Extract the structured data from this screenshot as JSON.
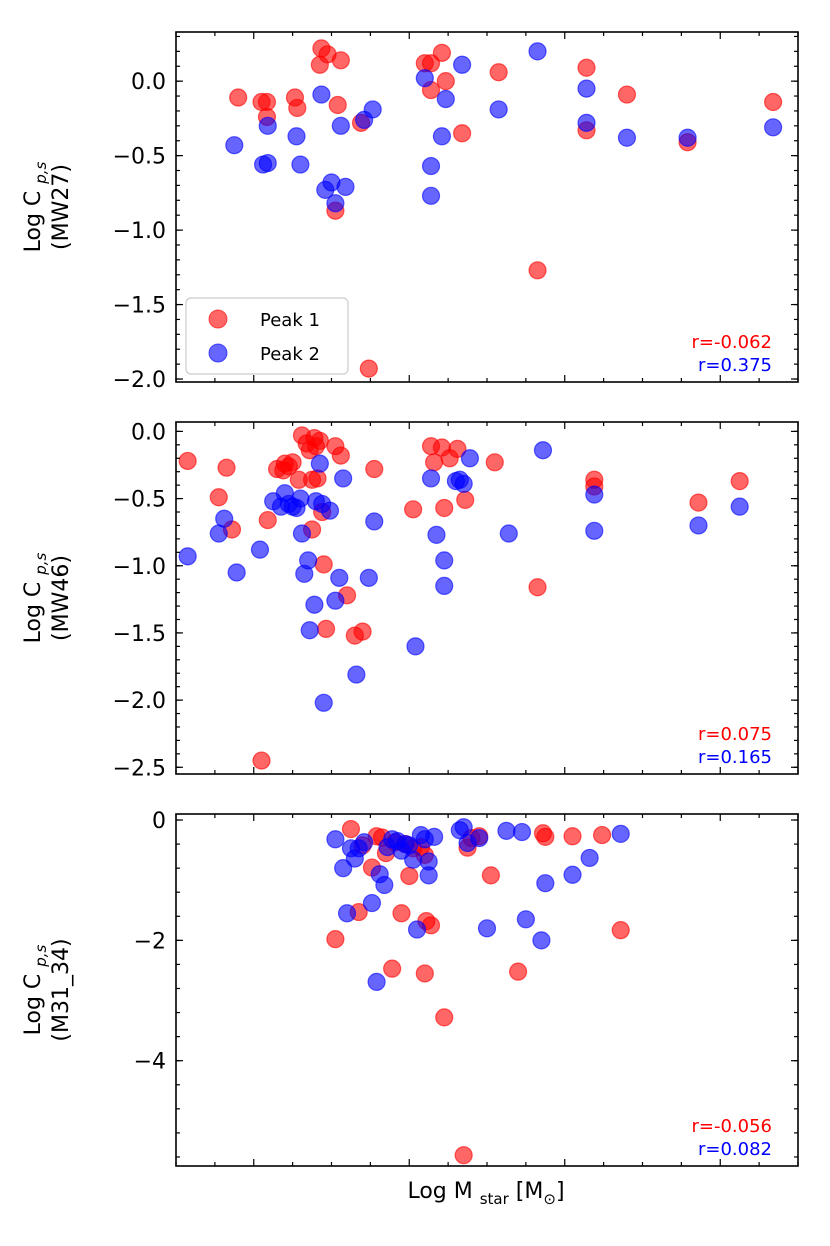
{
  "chart_data": [
    {
      "type": "scatter",
      "ylabel": "Log C",
      "ylabel_subscript": "p,s",
      "ylabel_line2": "(MW27)",
      "ylim": [
        -2.02,
        0.33
      ],
      "yticks": [
        0.0,
        -0.5,
        -1.0,
        -1.5,
        -2.0
      ],
      "ytick_labels": [
        "0.0",
        "−0.5",
        "−1.0",
        "−1.5",
        "−2.0"
      ],
      "legend": [
        {
          "name": "Peak 1",
          "color": "#ff0000"
        },
        {
          "name": "Peak 2",
          "color": "#0000ff"
        }
      ],
      "correlations": [
        {
          "text": "r=-0.062",
          "color": "#ff0000"
        },
        {
          "text": "r=0.375",
          "color": "#0000ff"
        }
      ],
      "series": [
        {
          "name": "Peak 1",
          "color": "#ff0000",
          "points": [
            [
              0.8,
              -0.11
            ],
            [
              1.1,
              -0.14
            ],
            [
              1.17,
              -0.14
            ],
            [
              1.17,
              -0.24
            ],
            [
              1.53,
              -0.11
            ],
            [
              1.56,
              -0.18
            ],
            [
              1.85,
              0.11
            ],
            [
              1.87,
              0.22
            ],
            [
              1.95,
              0.18
            ],
            [
              2.08,
              -0.16
            ],
            [
              2.12,
              0.14
            ],
            [
              2.05,
              -0.87
            ],
            [
              2.38,
              -0.28
            ],
            [
              2.48,
              -1.93
            ],
            [
              3.2,
              0.12
            ],
            [
              3.28,
              0.12
            ],
            [
              3.28,
              -0.06
            ],
            [
              3.42,
              0.19
            ],
            [
              3.47,
              0.0
            ],
            [
              3.68,
              -0.35
            ],
            [
              4.15,
              0.06
            ],
            [
              4.65,
              -1.27
            ],
            [
              5.28,
              0.09
            ],
            [
              5.28,
              -0.33
            ],
            [
              5.8,
              -0.09
            ],
            [
              6.58,
              -0.41
            ],
            [
              7.68,
              -0.14
            ]
          ]
        },
        {
          "name": "Peak 2",
          "color": "#0000ff",
          "points": [
            [
              0.75,
              -0.43
            ],
            [
              1.12,
              -0.56
            ],
            [
              1.18,
              -0.55
            ],
            [
              1.18,
              -0.3
            ],
            [
              1.55,
              -0.37
            ],
            [
              1.6,
              -0.56
            ],
            [
              1.87,
              -0.09
            ],
            [
              1.92,
              -0.73
            ],
            [
              2.0,
              -0.68
            ],
            [
              2.05,
              -0.82
            ],
            [
              2.12,
              -0.3
            ],
            [
              2.18,
              -0.71
            ],
            [
              2.42,
              -0.26
            ],
            [
              2.53,
              -0.19
            ],
            [
              3.2,
              0.02
            ],
            [
              3.28,
              -0.57
            ],
            [
              3.28,
              -0.77
            ],
            [
              3.42,
              -0.37
            ],
            [
              3.47,
              -0.12
            ],
            [
              3.68,
              0.11
            ],
            [
              4.15,
              -0.19
            ],
            [
              4.65,
              0.2
            ],
            [
              5.28,
              -0.05
            ],
            [
              5.28,
              -0.28
            ],
            [
              5.8,
              -0.38
            ],
            [
              6.58,
              -0.38
            ],
            [
              7.68,
              -0.31
            ]
          ]
        }
      ]
    },
    {
      "type": "scatter",
      "ylabel": "Log C",
      "ylabel_subscript": "p,s",
      "ylabel_line2": "(MW46)",
      "ylim": [
        -2.55,
        0.07
      ],
      "yticks": [
        0.0,
        -0.5,
        -1.0,
        -1.5,
        -2.0,
        -2.5
      ],
      "ytick_labels": [
        "0.0",
        "−0.5",
        "−1.0",
        "−1.5",
        "−2.0",
        "−2.5"
      ],
      "legend": [],
      "correlations": [
        {
          "text": "r=0.075",
          "color": "#ff0000"
        },
        {
          "text": "r=0.165",
          "color": "#0000ff"
        }
      ],
      "series": [
        {
          "name": "Peak 1",
          "color": "#ff0000",
          "points": [
            [
              0.15,
              -0.22
            ],
            [
              0.55,
              -0.49
            ],
            [
              0.65,
              -0.27
            ],
            [
              0.72,
              -0.73
            ],
            [
              1.18,
              -0.66
            ],
            [
              1.1,
              -2.45
            ],
            [
              1.3,
              -0.28
            ],
            [
              1.38,
              -0.29
            ],
            [
              1.4,
              -0.24
            ],
            [
              1.45,
              -0.26
            ],
            [
              1.5,
              -0.23
            ],
            [
              1.58,
              -0.36
            ],
            [
              1.62,
              -0.03
            ],
            [
              1.68,
              -0.09
            ],
            [
              1.72,
              -0.14
            ],
            [
              1.75,
              -0.36
            ],
            [
              1.78,
              -0.05
            ],
            [
              1.8,
              -0.11
            ],
            [
              1.82,
              -0.35
            ],
            [
              1.85,
              -0.07
            ],
            [
              1.88,
              -0.6
            ],
            [
              1.9,
              -0.99
            ],
            [
              1.93,
              -1.47
            ],
            [
              1.75,
              -0.73
            ],
            [
              2.05,
              -0.11
            ],
            [
              2.12,
              -0.18
            ],
            [
              2.2,
              -1.22
            ],
            [
              2.3,
              -1.52
            ],
            [
              2.4,
              -1.49
            ],
            [
              2.55,
              -0.28
            ],
            [
              3.05,
              -0.58
            ],
            [
              3.28,
              -0.11
            ],
            [
              3.32,
              -0.23
            ],
            [
              3.42,
              -0.12
            ],
            [
              3.45,
              -0.57
            ],
            [
              3.52,
              -0.2
            ],
            [
              3.62,
              -0.13
            ],
            [
              3.72,
              -0.51
            ],
            [
              4.1,
              -0.23
            ],
            [
              4.65,
              -1.16
            ],
            [
              5.38,
              -0.36
            ],
            [
              5.38,
              -0.41
            ],
            [
              6.72,
              -0.53
            ],
            [
              7.25,
              -0.37
            ]
          ]
        },
        {
          "name": "Peak 2",
          "color": "#0000ff",
          "points": [
            [
              0.15,
              -0.93
            ],
            [
              0.55,
              -0.76
            ],
            [
              0.62,
              -0.65
            ],
            [
              0.78,
              -1.05
            ],
            [
              1.08,
              -0.88
            ],
            [
              1.25,
              -0.52
            ],
            [
              1.35,
              -0.56
            ],
            [
              1.4,
              -0.46
            ],
            [
              1.45,
              -0.54
            ],
            [
              1.5,
              -0.56
            ],
            [
              1.55,
              -0.57
            ],
            [
              1.6,
              -0.5
            ],
            [
              1.62,
              -0.76
            ],
            [
              1.65,
              -1.06
            ],
            [
              1.7,
              -0.96
            ],
            [
              1.72,
              -1.48
            ],
            [
              1.78,
              -1.29
            ],
            [
              1.8,
              -0.52
            ],
            [
              1.85,
              -0.24
            ],
            [
              1.88,
              -0.54
            ],
            [
              1.9,
              -2.02
            ],
            [
              1.98,
              -0.59
            ],
            [
              2.05,
              -1.26
            ],
            [
              2.1,
              -1.09
            ],
            [
              2.15,
              -0.35
            ],
            [
              2.32,
              -1.81
            ],
            [
              2.48,
              -1.09
            ],
            [
              2.55,
              -0.67
            ],
            [
              3.08,
              -1.6
            ],
            [
              3.28,
              -0.35
            ],
            [
              3.35,
              -0.77
            ],
            [
              3.45,
              -0.96
            ],
            [
              3.45,
              -1.15
            ],
            [
              3.6,
              -0.37
            ],
            [
              3.65,
              -0.36
            ],
            [
              3.7,
              -0.39
            ],
            [
              3.78,
              -0.2
            ],
            [
              4.28,
              -0.76
            ],
            [
              4.72,
              -0.14
            ],
            [
              5.38,
              -0.47
            ],
            [
              5.38,
              -0.74
            ],
            [
              6.72,
              -0.7
            ],
            [
              7.25,
              -0.56
            ]
          ]
        }
      ]
    },
    {
      "type": "scatter",
      "ylabel": "Log C",
      "ylabel_subscript": "p,s",
      "ylabel_line2": "(M31_34)",
      "ylim": [
        -5.75,
        0.1
      ],
      "yticks": [
        0,
        -2,
        -4
      ],
      "ytick_labels": [
        "0",
        "−2",
        "−4"
      ],
      "legend": [],
      "xlabel": "Log M",
      "xlabel_subscript": "star",
      "xlabel_unit": "[M",
      "xlabel_unit_symbol": "⊙",
      "xlabel_unit_close": "]",
      "correlations": [
        {
          "text": "r=-0.056",
          "color": "#ff0000"
        },
        {
          "text": "r=0.082",
          "color": "#0000ff"
        }
      ],
      "series": [
        {
          "name": "Peak 1",
          "color": "#ff0000",
          "points": [
            [
              2.05,
              -1.98
            ],
            [
              2.25,
              -0.15
            ],
            [
              2.35,
              -1.53
            ],
            [
              2.4,
              -0.42
            ],
            [
              2.52,
              -0.79
            ],
            [
              2.58,
              -0.27
            ],
            [
              2.65,
              -0.29
            ],
            [
              2.7,
              -0.55
            ],
            [
              2.78,
              -2.47
            ],
            [
              2.82,
              -0.37
            ],
            [
              2.9,
              -1.55
            ],
            [
              2.95,
              -0.4
            ],
            [
              3.0,
              -0.93
            ],
            [
              3.05,
              -0.47
            ],
            [
              3.15,
              -0.45
            ],
            [
              3.2,
              -0.58
            ],
            [
              3.2,
              -2.55
            ],
            [
              3.28,
              -1.75
            ],
            [
              3.22,
              -1.68
            ],
            [
              3.45,
              -3.28
            ],
            [
              3.7,
              -5.57
            ],
            [
              3.75,
              -0.46
            ],
            [
              3.8,
              -0.3
            ],
            [
              3.9,
              -0.27
            ],
            [
              4.05,
              -0.92
            ],
            [
              4.4,
              -2.52
            ],
            [
              4.72,
              -0.22
            ],
            [
              4.75,
              -0.28
            ],
            [
              5.1,
              -0.27
            ],
            [
              5.48,
              -0.25
            ],
            [
              5.72,
              -1.83
            ]
          ]
        },
        {
          "name": "Peak 2",
          "color": "#0000ff",
          "points": [
            [
              2.05,
              -0.32
            ],
            [
              2.15,
              -0.8
            ],
            [
              2.2,
              -1.55
            ],
            [
              2.25,
              -0.47
            ],
            [
              2.3,
              -0.64
            ],
            [
              2.35,
              -0.47
            ],
            [
              2.42,
              -0.37
            ],
            [
              2.52,
              -1.38
            ],
            [
              2.58,
              -2.69
            ],
            [
              2.62,
              -0.9
            ],
            [
              2.68,
              -1.08
            ],
            [
              2.72,
              -0.45
            ],
            [
              2.78,
              -0.32
            ],
            [
              2.85,
              -0.35
            ],
            [
              2.9,
              -0.51
            ],
            [
              2.95,
              -0.4
            ],
            [
              3.0,
              -0.42
            ],
            [
              3.05,
              -0.66
            ],
            [
              3.1,
              -1.82
            ],
            [
              3.15,
              -0.25
            ],
            [
              3.2,
              -0.32
            ],
            [
              3.25,
              -0.92
            ],
            [
              3.25,
              -0.69
            ],
            [
              3.32,
              -0.28
            ],
            [
              3.65,
              -0.17
            ],
            [
              3.7,
              -0.12
            ],
            [
              3.75,
              -0.38
            ],
            [
              3.9,
              -0.3
            ],
            [
              4.0,
              -1.8
            ],
            [
              4.25,
              -0.18
            ],
            [
              4.45,
              -0.2
            ],
            [
              4.5,
              -1.65
            ],
            [
              4.7,
              -2.0
            ],
            [
              4.75,
              -1.05
            ],
            [
              5.1,
              -0.91
            ],
            [
              5.32,
              -0.63
            ],
            [
              5.72,
              -0.23
            ]
          ]
        }
      ]
    }
  ]
}
